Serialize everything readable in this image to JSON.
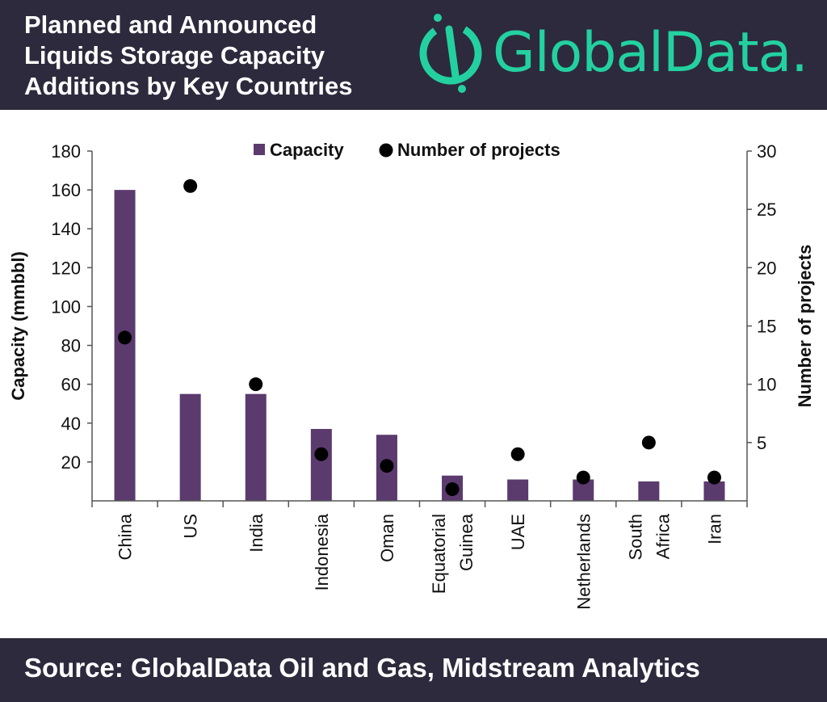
{
  "header": {
    "title_lines": [
      "Planned and Announced",
      "Liquids Storage Capacity",
      "Additions by Key Countries"
    ],
    "logo_text": "GlobalData."
  },
  "footer": {
    "source": "Source: GlobalData Oil and Gas, Midstream Analytics"
  },
  "colors": {
    "header_bg": "#2d2a3d",
    "brand_green": "#23d1a0",
    "bar": "#5b3a6e",
    "dot": "#000000"
  },
  "chart_data": {
    "type": "bar",
    "categories": [
      "China",
      "US",
      "India",
      "Indonesia",
      "Oman",
      "Equatorial Guinea",
      "UAE",
      "Netherlands",
      "South Africa",
      "Iran"
    ],
    "category_lines": [
      [
        "China"
      ],
      [
        "US"
      ],
      [
        "India"
      ],
      [
        "Indonesia"
      ],
      [
        "Oman"
      ],
      [
        "Equatorial",
        "Guinea"
      ],
      [
        "UAE"
      ],
      [
        "Netherlands"
      ],
      [
        "South",
        "Africa"
      ],
      [
        "Iran"
      ]
    ],
    "series": [
      {
        "name": "Capacity",
        "axis": "left",
        "kind": "bar",
        "values": [
          160,
          55,
          55,
          37,
          34,
          13,
          11,
          11,
          10,
          10
        ]
      },
      {
        "name": "Number of projects",
        "axis": "right",
        "kind": "scatter",
        "values": [
          14,
          27,
          10,
          4,
          3,
          1,
          4,
          2,
          5,
          2
        ]
      }
    ],
    "ylabel": "Capacity (mmbbl)",
    "y2label": "Number of projects",
    "ylim": [
      0,
      180
    ],
    "y2lim": [
      0,
      30
    ],
    "yticks": [
      20,
      40,
      60,
      80,
      100,
      120,
      140,
      160,
      180
    ],
    "y2ticks": [
      5,
      10,
      15,
      20,
      25,
      30
    ],
    "legend_position": "top-center"
  }
}
